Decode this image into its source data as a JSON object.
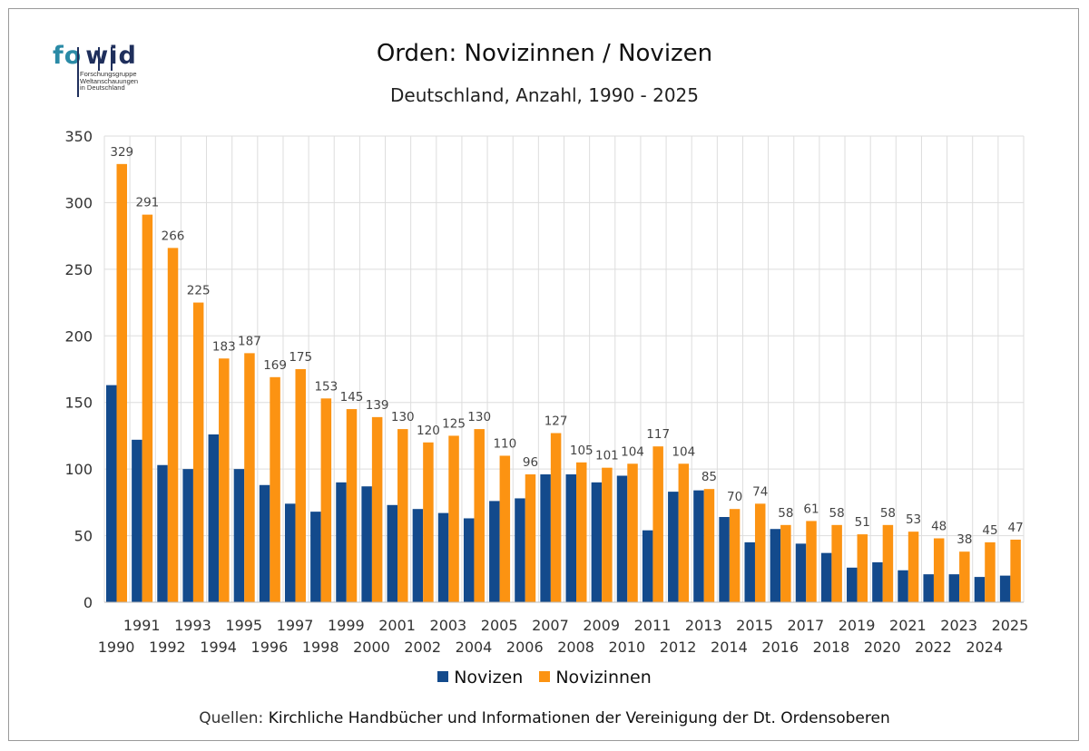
{
  "logo": {
    "name_part1": "fo",
    "name_part2": "wid",
    "subtitle_lines": [
      "Forschungsgruppe",
      "Weltanschauungen",
      "in Deutschland"
    ]
  },
  "colors": {
    "novizen": "#134a8c",
    "novizinnen": "#fc9312",
    "grid": "#dddddd",
    "axis_text": "#333333",
    "label_text": "#444444"
  },
  "source": {
    "label": "Quellen:",
    "text": "Kirchliche Handbücher und Informationen der Vereinigung der Dt. Ordensoberen"
  },
  "chart_data": {
    "type": "bar",
    "title": "Orden: Novizinnen / Novizen",
    "subtitle": "Deutschland, Anzahl, 1990 - 2025",
    "xlabel": "",
    "ylabel": "",
    "ylim": [
      0,
      350
    ],
    "yticks": [
      0,
      50,
      100,
      150,
      200,
      250,
      300,
      350
    ],
    "grid": true,
    "legend_position": "bottom",
    "categories": [
      "1990",
      "1991",
      "1992",
      "1993",
      "1994",
      "1995",
      "1996",
      "1997",
      "1998",
      "1999",
      "2000",
      "2001",
      "2002",
      "2003",
      "2004",
      "2005",
      "2006",
      "2007",
      "2008",
      "2009",
      "2010",
      "2011",
      "2012",
      "2013",
      "2014",
      "2015",
      "2016",
      "2017",
      "2018",
      "2019",
      "2020",
      "2021",
      "2022",
      "2023",
      "2024",
      "2025"
    ],
    "series": [
      {
        "name": "Novizen",
        "values": [
          163,
          122,
          103,
          100,
          126,
          100,
          88,
          74,
          68,
          90,
          87,
          73,
          70,
          67,
          63,
          76,
          78,
          96,
          96,
          90,
          95,
          54,
          83,
          84,
          64,
          45,
          55,
          44,
          37,
          26,
          30,
          24,
          21,
          21,
          19,
          20
        ],
        "data_labels": false
      },
      {
        "name": "Novizinnen",
        "values": [
          329,
          291,
          266,
          225,
          183,
          187,
          169,
          175,
          153,
          145,
          139,
          130,
          120,
          125,
          130,
          110,
          96,
          127,
          105,
          101,
          104,
          117,
          104,
          85,
          70,
          74,
          58,
          61,
          58,
          51,
          58,
          53,
          48,
          38,
          45,
          47
        ],
        "data_labels": true
      }
    ]
  }
}
